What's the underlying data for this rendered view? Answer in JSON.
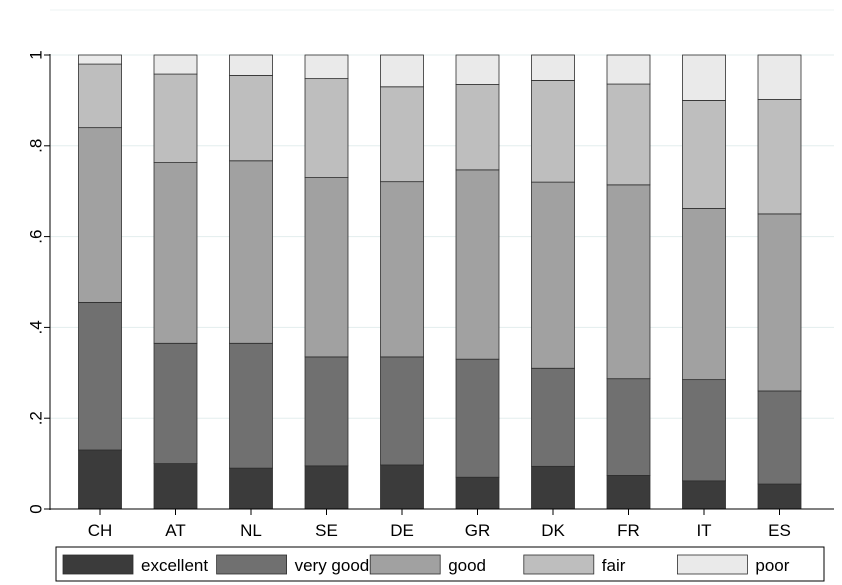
{
  "chart_data": {
    "type": "bar",
    "stacked": true,
    "categories": [
      "CH",
      "AT",
      "NL",
      "SE",
      "DE",
      "GR",
      "DK",
      "FR",
      "IT",
      "ES"
    ],
    "series": [
      {
        "name": "excellent",
        "color": "#3b3b3b",
        "values": [
          0.13,
          0.1,
          0.09,
          0.095,
          0.097,
          0.07,
          0.094,
          0.074,
          0.062,
          0.055
        ]
      },
      {
        "name": "very good",
        "color": "#707070",
        "values": [
          0.325,
          0.265,
          0.275,
          0.24,
          0.238,
          0.26,
          0.216,
          0.213,
          0.223,
          0.205
        ]
      },
      {
        "name": "good",
        "color": "#a1a1a1",
        "values": [
          0.385,
          0.398,
          0.402,
          0.395,
          0.386,
          0.417,
          0.41,
          0.427,
          0.377,
          0.39
        ]
      },
      {
        "name": "fair",
        "color": "#bebebe",
        "values": [
          0.14,
          0.195,
          0.188,
          0.218,
          0.209,
          0.188,
          0.224,
          0.222,
          0.238,
          0.252
        ]
      },
      {
        "name": "poor",
        "color": "#eaeaea",
        "values": [
          0.02,
          0.042,
          0.045,
          0.052,
          0.07,
          0.065,
          0.056,
          0.064,
          0.1,
          0.098
        ]
      }
    ],
    "y_ticks": [
      {
        "value": 0,
        "label": "0"
      },
      {
        "value": 0.2,
        "label": ".2"
      },
      {
        "value": 0.4,
        "label": ".4"
      },
      {
        "value": 0.6,
        "label": ".6"
      },
      {
        "value": 0.8,
        "label": ".8"
      },
      {
        "value": 1,
        "label": "1"
      }
    ],
    "ylim": [
      0,
      1
    ],
    "title": "",
    "xlabel": "",
    "ylabel": "",
    "grid": true,
    "legend_position": "bottom"
  }
}
